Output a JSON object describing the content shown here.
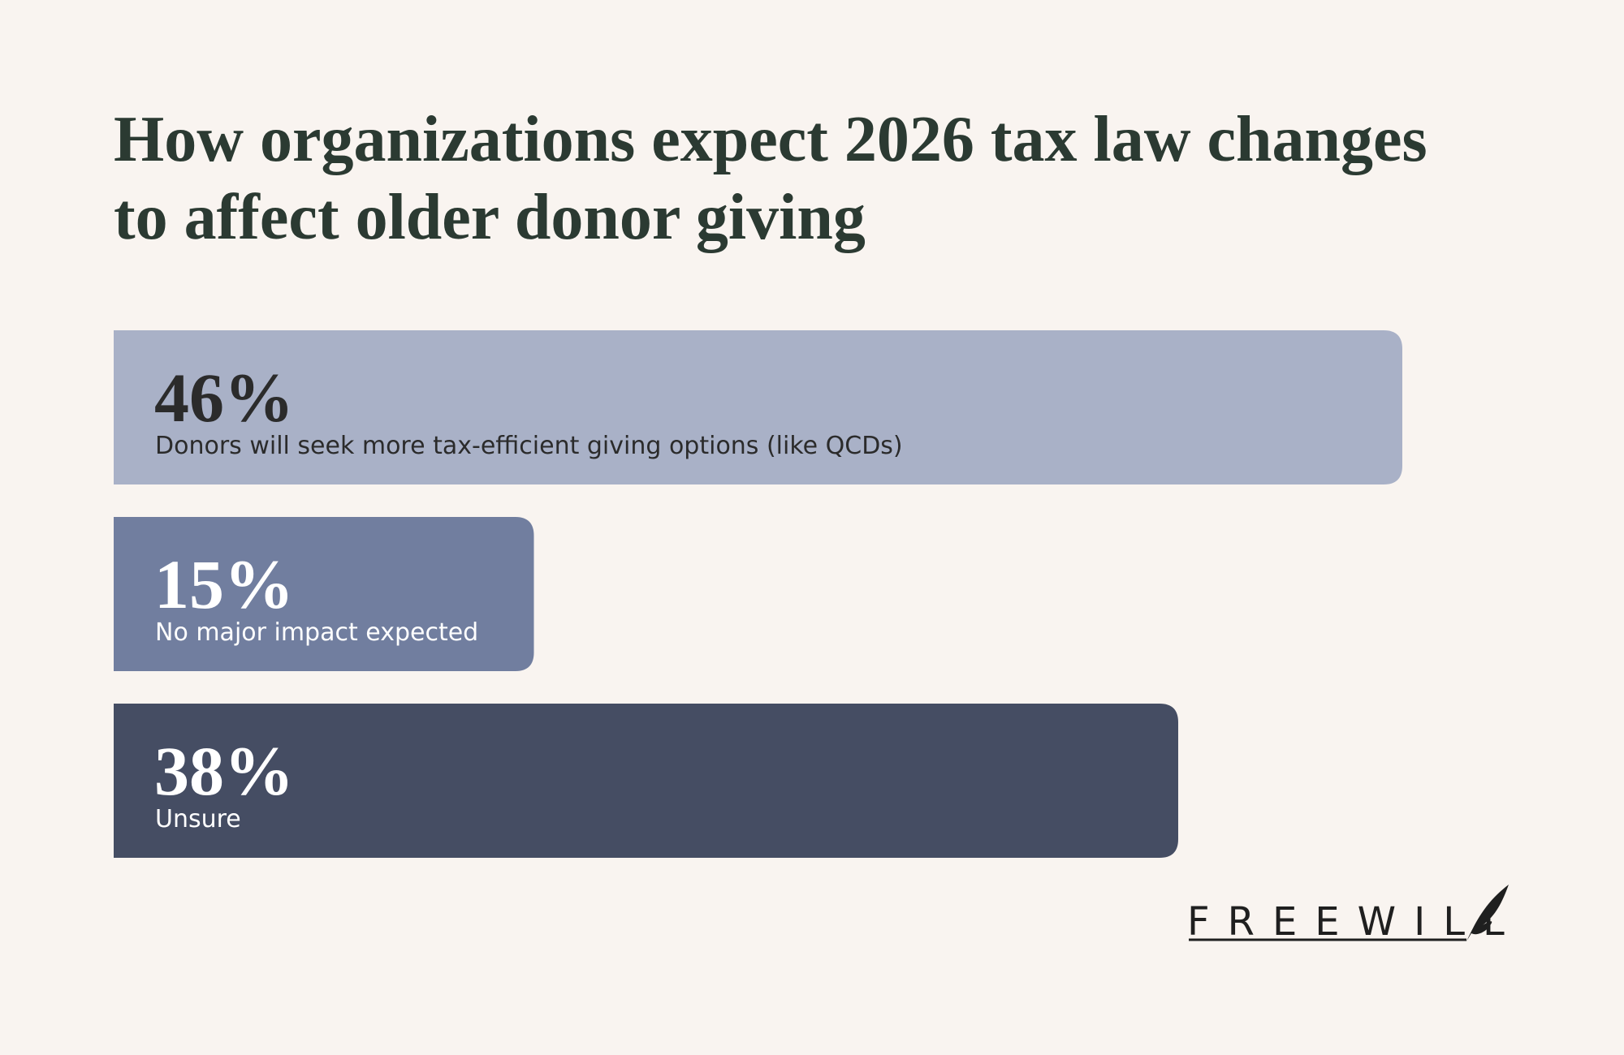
{
  "chart_data": {
    "type": "bar",
    "orientation": "horizontal",
    "title": "How organizations expect 2026 tax law changes to affect older donor giving",
    "categories": [
      "Donors will seek more tax-efficient giving options (like QCDs)",
      "No major impact expected",
      "Unsure"
    ],
    "values": [
      46,
      15,
      38
    ],
    "value_labels": [
      "46%",
      "15%",
      "38%"
    ],
    "colors": [
      "#a9b1c7",
      "#717e9f",
      "#454d63"
    ]
  },
  "logo": "FREEWILL"
}
